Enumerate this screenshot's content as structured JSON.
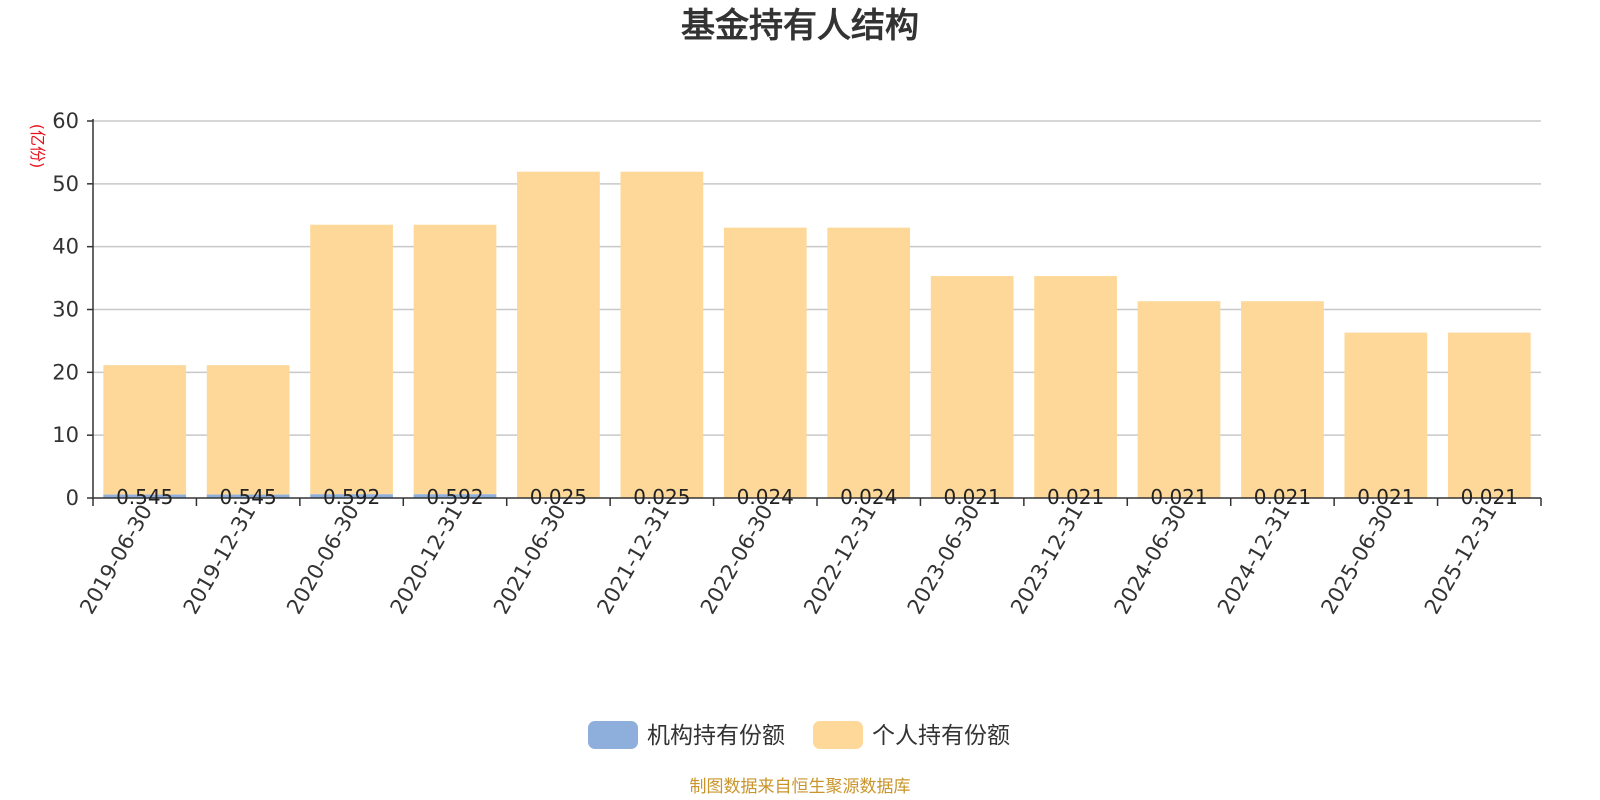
{
  "chart_data": {
    "type": "bar",
    "stacked": true,
    "title": "基金持有人结构",
    "unit_label": "(亿份)",
    "categories": [
      "2019-06-30",
      "2019-12-31",
      "2020-06-30",
      "2020-12-31",
      "2021-06-30",
      "2021-12-31",
      "2022-06-30",
      "2022-12-31",
      "2023-06-30",
      "2023-12-31",
      "2024-06-30",
      "2024-12-31",
      "2025-06-30",
      "2025-12-31"
    ],
    "series": [
      {
        "name": "机构持有份额",
        "color": "#8eaedb",
        "values": [
          0.545,
          0.545,
          0.592,
          0.592,
          0.025,
          0.025,
          0.024,
          0.024,
          0.021,
          0.021,
          0.021,
          0.021,
          0.021,
          0.021
        ],
        "labels": [
          "0.545",
          "0.545",
          "0.592",
          "0.592",
          "0.025",
          "0.025",
          "0.024",
          "0.024",
          "0.021",
          "0.021",
          "0.021",
          "0.021",
          "0.021",
          "0.021"
        ]
      },
      {
        "name": "个人持有份额",
        "color": "#fdd899",
        "values": [
          20.6,
          20.6,
          42.9,
          42.9,
          51.9,
          51.9,
          43.0,
          43.0,
          35.3,
          35.3,
          31.3,
          31.3,
          26.3,
          26.3
        ]
      }
    ],
    "ylim": [
      0,
      60
    ],
    "yticks": [
      0,
      10,
      20,
      30,
      40,
      50,
      60
    ],
    "grid": true,
    "legend_position": "bottom-center",
    "source": "制图数据来自恒生聚源数据库"
  }
}
